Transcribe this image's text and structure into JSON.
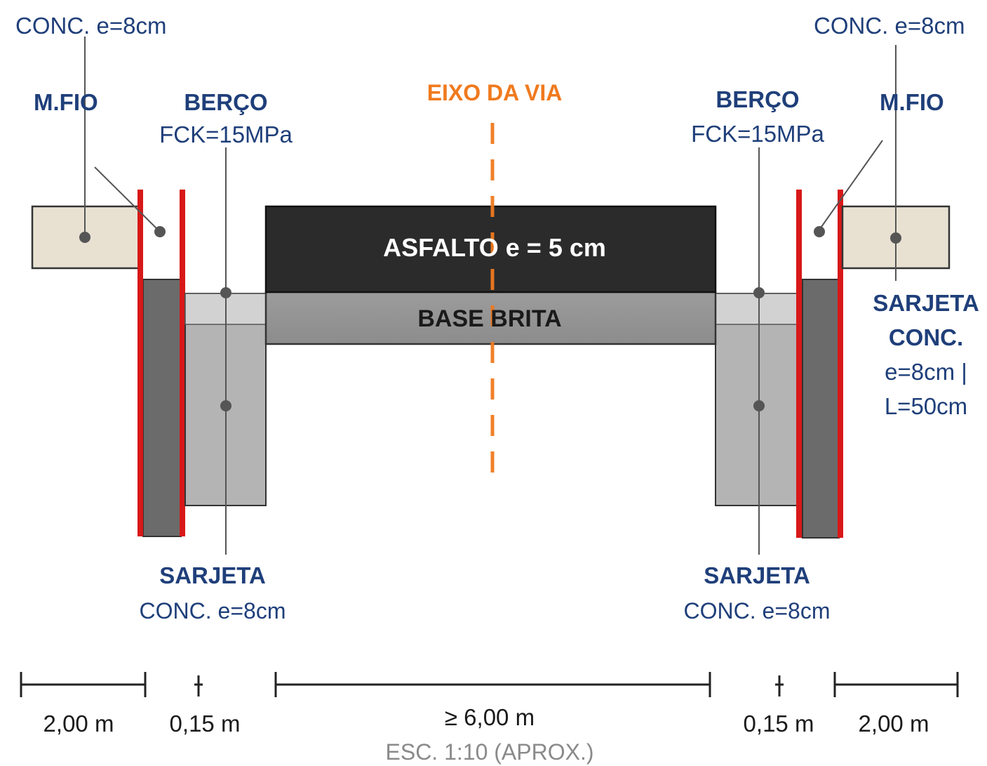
{
  "top_left_label": "CONC. e=8cm",
  "top_right_label": "CONC. e=8cm",
  "left_mfio": "M.FIO",
  "right_mfio": "M.FIO",
  "left_berco_title": "BERÇO",
  "left_berco_fck": "FCK=15MPa",
  "right_berco_title": "BERÇO",
  "right_berco_fck": "FCK=15MPa",
  "axis_label": "EIXO DA VIA",
  "asphalt_label": "ASFALTO e = 5 cm",
  "base_label": "BASE BRITA",
  "left_sarjeta_title": "SARJETA",
  "left_sarjeta_sub": "CONC. e=8cm",
  "right_sarjeta_title": "SARJETA",
  "right_sarjeta_sub": "CONC. e=8cm",
  "right_side_sarjeta": {
    "line1": "SARJETA",
    "line2": "CONC.",
    "line3": "e=8cm |",
    "line4": "L=50cm"
  },
  "dimensions": {
    "left_walk": "2,00 m",
    "left_curb": "0,15 m",
    "road": "≥ 6,00 m",
    "right_curb": "0,15 m",
    "right_walk": "2,00 m"
  },
  "scale": "ESC. 1:10 (APROX.)",
  "colors": {
    "label_blue": "#1f3f7a",
    "axis_orange": "#f07a1e",
    "asphalt": "#2b2b2b",
    "base": "#9a9a9a",
    "curb_red": "#d81818",
    "sidewalk": "#e8e1d2"
  }
}
